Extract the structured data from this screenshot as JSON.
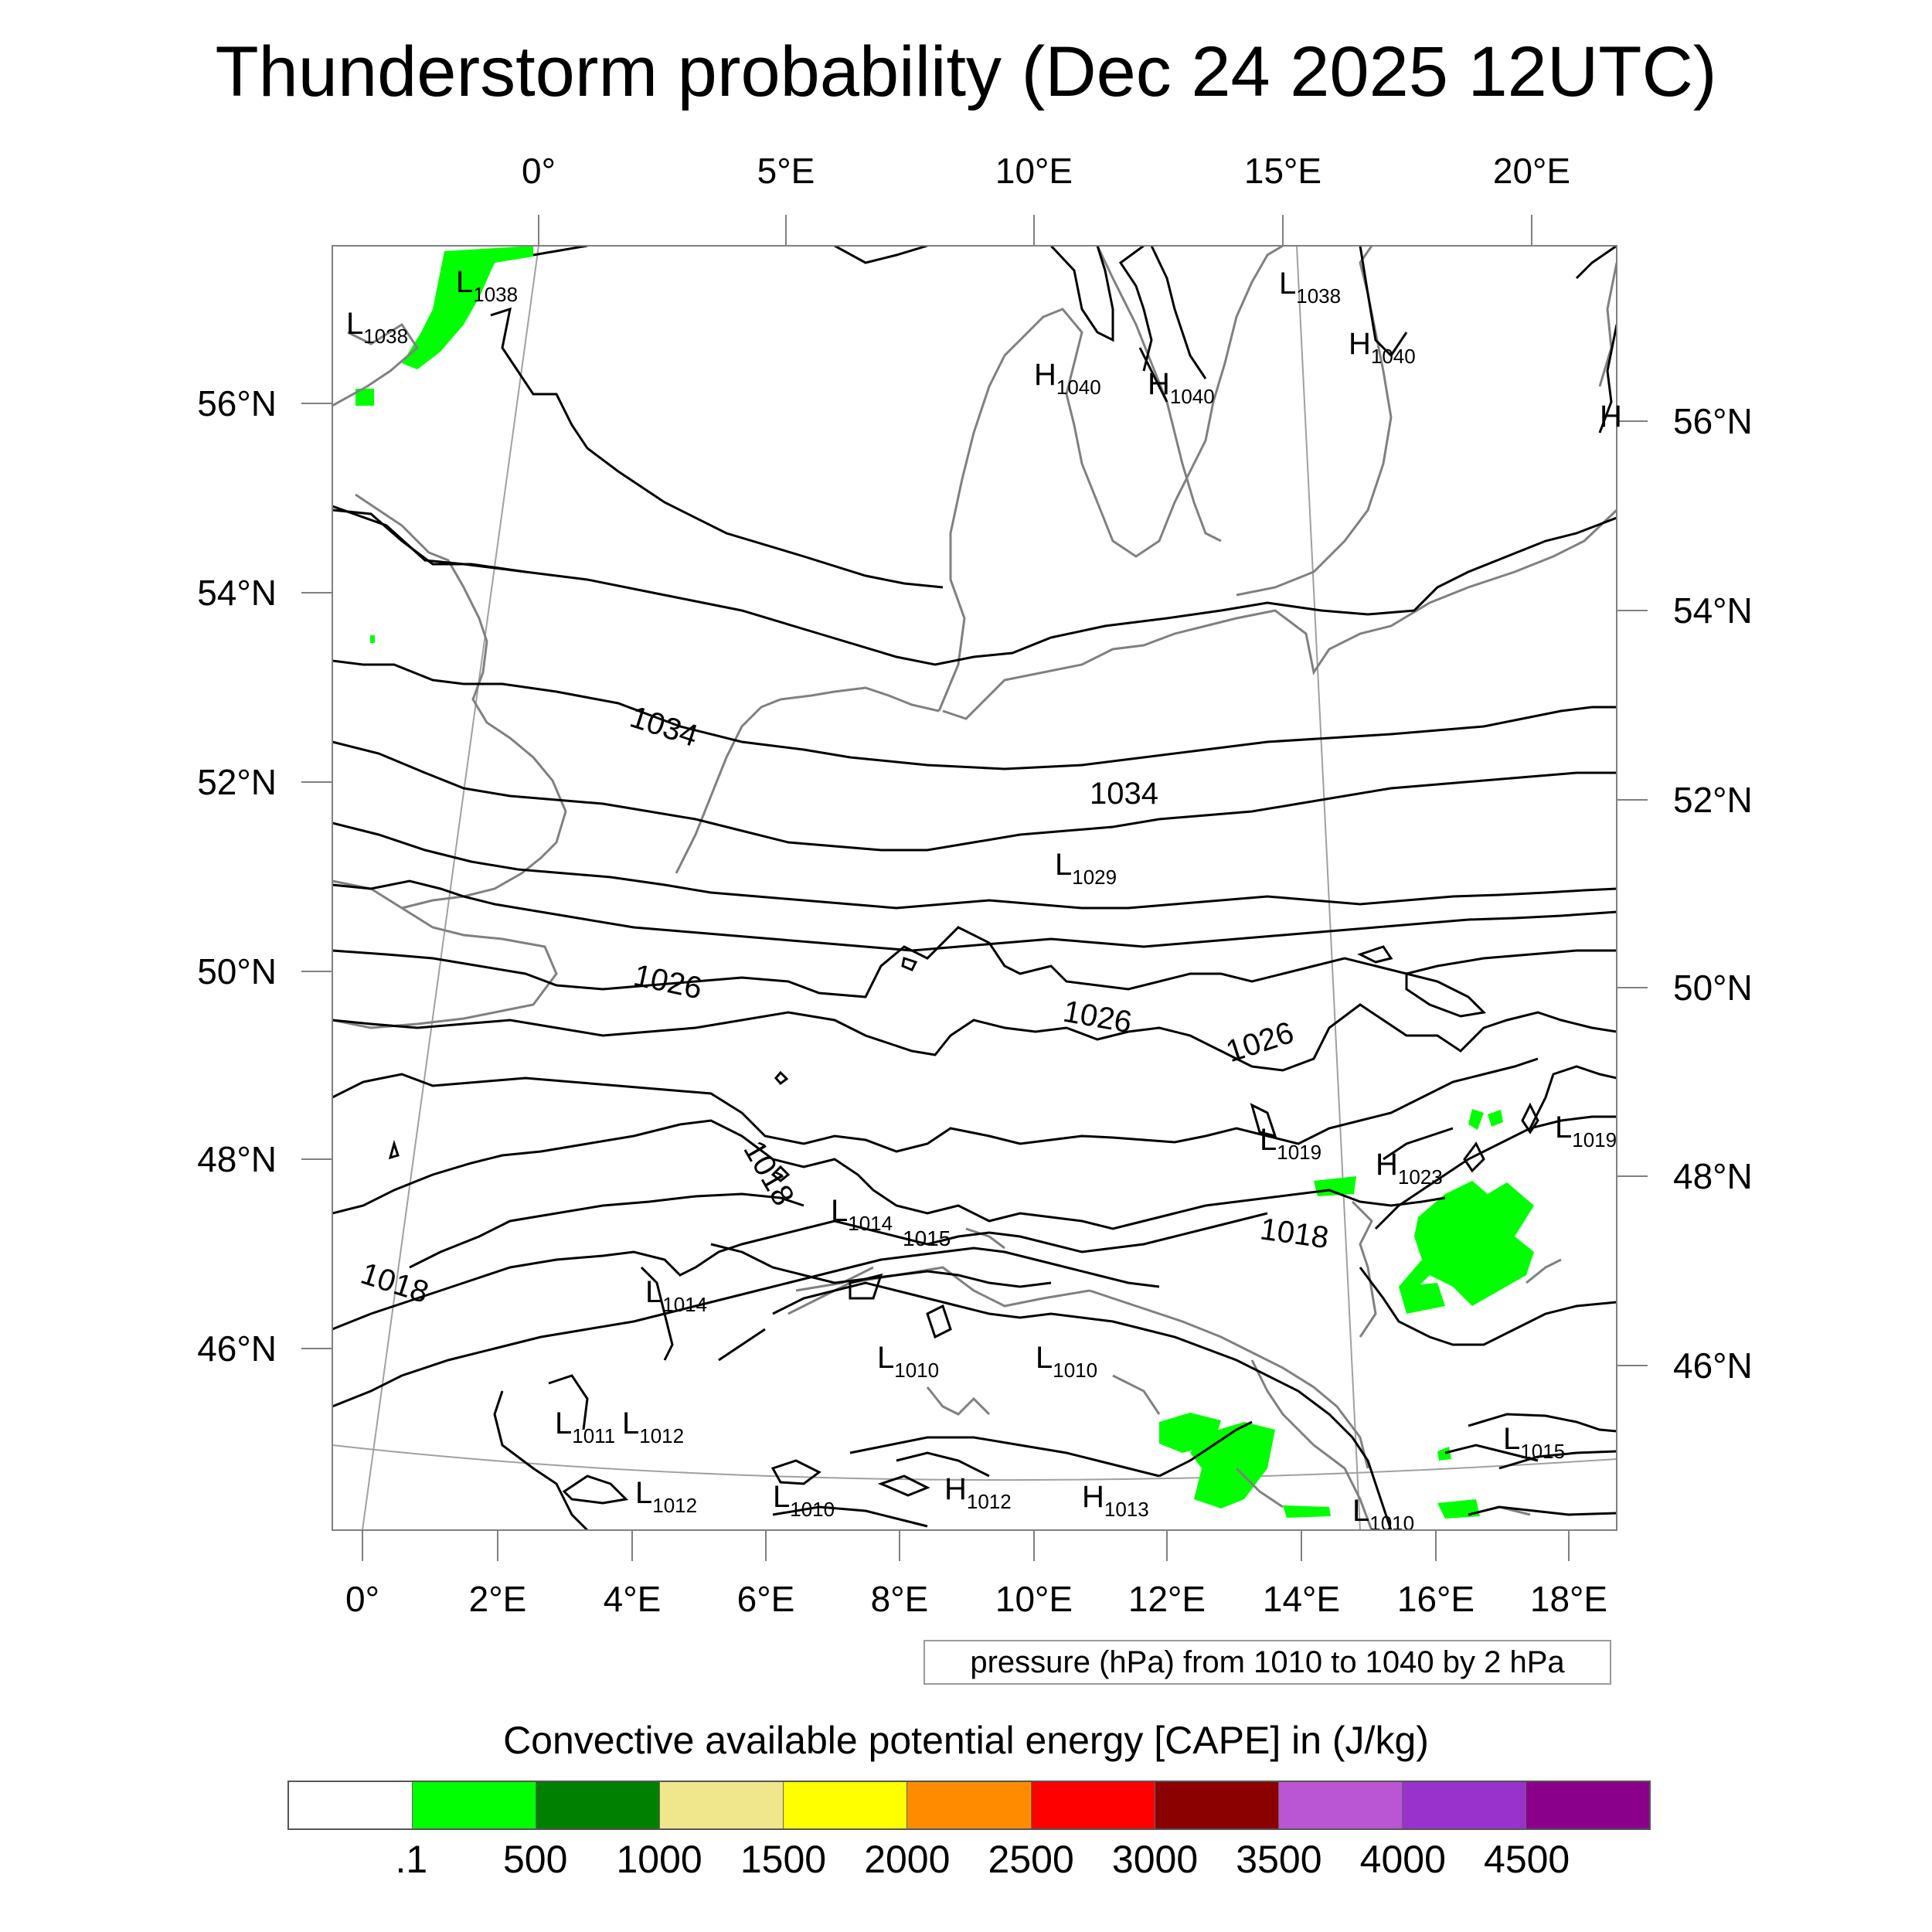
{
  "title": "Thunderstorm probability (Dec 24 2025 12UTC)",
  "map": {
    "lon_range": [
      0,
      18
    ],
    "lat_range": [
      44,
      57.5
    ],
    "top_axis_labels": [
      "0°",
      "5°E",
      "10°E",
      "15°E",
      "20°E"
    ],
    "bottom_axis_labels": [
      "0°",
      "2°E",
      "4°E",
      "6°E",
      "8°E",
      "10°E",
      "12°E",
      "14°E",
      "16°E",
      "18°E"
    ],
    "left_axis_labels": [
      "56°N",
      "54°N",
      "52°N",
      "50°N",
      "48°N",
      "46°N"
    ],
    "right_axis_labels": [
      "56°N",
      "54°N",
      "52°N",
      "50°N",
      "48°N",
      "46°N"
    ],
    "isobar_labels": [
      "1034",
      "1034",
      "1026",
      "1026",
      "1026",
      "1018",
      "1018",
      "1018",
      "1015"
    ],
    "pressure_centers": [
      {
        "type": "L",
        "value": "1038"
      },
      {
        "type": "L",
        "value": "1038"
      },
      {
        "type": "L",
        "value": "1038"
      },
      {
        "type": "H",
        "value": "1040"
      },
      {
        "type": "H",
        "value": "1040"
      },
      {
        "type": "H",
        "value": "1040"
      },
      {
        "type": "L",
        "value": "1029"
      },
      {
        "type": "L",
        "value": "1019"
      },
      {
        "type": "H",
        "value": "1023"
      },
      {
        "type": "L",
        "value": "1019"
      },
      {
        "type": "L",
        "value": "1014"
      },
      {
        "type": "L",
        "value": "1014"
      },
      {
        "type": "L",
        "value": "1010"
      },
      {
        "type": "L",
        "value": "1010"
      },
      {
        "type": "L",
        "value": "1011"
      },
      {
        "type": "L",
        "value": "1012"
      },
      {
        "type": "L",
        "value": "1012"
      },
      {
        "type": "L",
        "value": "1010"
      },
      {
        "type": "H",
        "value": "1012"
      },
      {
        "type": "H",
        "value": "1013"
      },
      {
        "type": "L",
        "value": "1010"
      },
      {
        "type": "L",
        "value": "1015"
      }
    ],
    "colors": {
      "isobar": "#000000",
      "coastline": "#808080",
      "frame": "#808080",
      "grid": "#a0a0a0",
      "cape_low": "#00ff00"
    }
  },
  "pressure_note": "pressure (hPa) from 1010 to 1040 by 2 hPa",
  "cape_legend": {
    "title": "Convective available potential energy [CAPE] in (J/kg)",
    "colors": [
      "#ffffff",
      "#00ff00",
      "#008000",
      "#f0e68c",
      "#ffff00",
      "#ff8c00",
      "#ff0000",
      "#8b0000",
      "#ba55d3",
      "#9932cc",
      "#8b008b"
    ],
    "labels": [
      ".1",
      "500",
      "1000",
      "1500",
      "2000",
      "2500",
      "3000",
      "3500",
      "4000",
      "4500"
    ]
  }
}
